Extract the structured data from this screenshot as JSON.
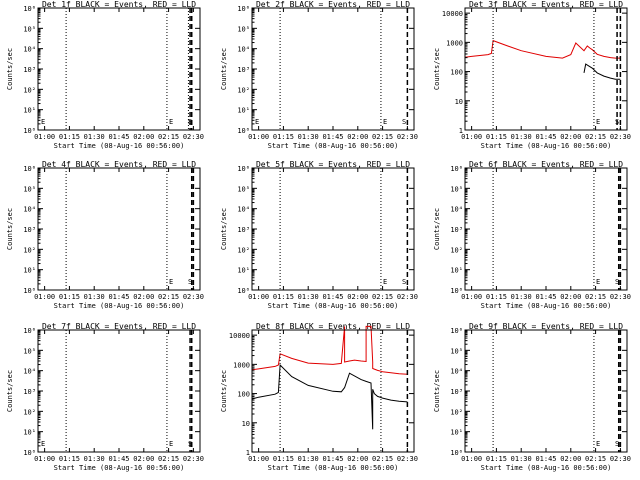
{
  "figure": {
    "background": "#ffffff",
    "colors": {
      "events": "#000000",
      "lld": "#e00000",
      "axis": "#000000"
    }
  },
  "chart_data": [
    {
      "panel": 1,
      "type": "line",
      "title": "Det 1f BLACK = Events, RED = LLD",
      "xlabel": "Start Time (08-Aug-16 00:56:00)",
      "ylabel": "Counts/sec",
      "xticks": [
        "01:00",
        "01:15",
        "01:30",
        "01:45",
        "02:00",
        "02:15",
        "02:30"
      ],
      "xlim": [
        "00:56",
        "02:34"
      ],
      "yscale": "log",
      "yticks": [
        "10⁰",
        "10¹",
        "10²",
        "10³",
        "10⁴",
        "10⁵",
        "10⁶"
      ],
      "ylim": [
        1,
        1000000
      ],
      "annotations": [
        "E",
        "E",
        "S"
      ],
      "dotted_lines_at": [
        "01:13",
        "02:14",
        "02:27"
      ],
      "dashed_lines_at": [
        "02:28",
        "02:29"
      ],
      "series": []
    },
    {
      "panel": 2,
      "type": "line",
      "title": "Det 2f BLACK = Events, RED = LLD",
      "xlabel": "Start Time (08-Aug-16 00:56:00)",
      "ylabel": "Counts/sec",
      "xticks": [
        "01:00",
        "01:15",
        "01:30",
        "01:45",
        "02:00",
        "02:15",
        "02:30"
      ],
      "xlim": [
        "00:56",
        "02:34"
      ],
      "yscale": "log",
      "yticks": [
        "10⁰",
        "10¹",
        "10²",
        "10³",
        "10⁴",
        "10⁵",
        "10⁶"
      ],
      "ylim": [
        1,
        1000000
      ],
      "annotations": [
        "E",
        "E",
        "S"
      ],
      "dotted_lines_at": [
        "01:13",
        "02:14"
      ],
      "dashed_lines_at": [
        "02:30"
      ],
      "series": []
    },
    {
      "panel": 3,
      "type": "line",
      "title": "Det 3f BLACK = Events, RED = LLD",
      "xlabel": "Start Time (08-Aug-16 00:56:00)",
      "ylabel": "Counts/sec",
      "xticks": [
        "01:00",
        "01:15",
        "01:30",
        "01:45",
        "02:00",
        "02:15",
        "02:30"
      ],
      "xlim": [
        "00:56",
        "02:34"
      ],
      "yscale": "log",
      "yticks": [
        "1",
        "10",
        "100",
        "1000",
        "10000"
      ],
      "ylim": [
        1,
        15000
      ],
      "annotations": [
        "E",
        "S"
      ],
      "dotted_lines_at": [
        "01:13",
        "02:14"
      ],
      "dashed_lines_at": [
        "02:28",
        "02:30"
      ],
      "series": [
        {
          "color": "#e00000",
          "x": [
            "00:56",
            "01:00",
            "01:10",
            "01:12",
            "01:13",
            "01:20",
            "01:30",
            "01:45",
            "01:55",
            "02:00",
            "02:03",
            "02:08",
            "02:10",
            "02:12",
            "02:13",
            "02:16",
            "02:20",
            "02:24",
            "02:27",
            "02:30"
          ],
          "y": [
            310,
            330,
            380,
            420,
            1150,
            820,
            520,
            330,
            290,
            380,
            950,
            520,
            750,
            610,
            560,
            390,
            330,
            300,
            290,
            290
          ]
        },
        {
          "color": "#000000",
          "x": [
            "02:08",
            "02:09",
            "02:13",
            "02:16",
            "02:20",
            "02:24",
            "02:27",
            "02:30"
          ],
          "y": [
            90,
            180,
            130,
            90,
            70,
            60,
            55,
            55
          ]
        }
      ]
    },
    {
      "panel": 4,
      "type": "line",
      "title": "Det 4f BLACK = Events, RED = LLD",
      "xlabel": "Start Time (08-Aug-16 00:56:00)",
      "ylabel": "Counts/sec",
      "xticks": [
        "01:00",
        "01:15",
        "01:30",
        "01:45",
        "02:00",
        "02:15",
        "02:30"
      ],
      "xlim": [
        "00:56",
        "02:34"
      ],
      "yscale": "log",
      "yticks": [
        "10⁰",
        "10¹",
        "10²",
        "10³",
        "10⁴",
        "10⁵",
        "10⁶"
      ],
      "ylim": [
        1,
        1000000
      ],
      "annotations": [
        "E",
        "S"
      ],
      "dotted_lines_at": [
        "01:13",
        "02:14"
      ],
      "dashed_lines_at": [
        "02:29",
        "02:30"
      ],
      "series": []
    },
    {
      "panel": 5,
      "type": "line",
      "title": "Det 5f BLACK = Events, RED = LLD",
      "xlabel": "Start Time (08-Aug-16 00:56:00)",
      "ylabel": "Counts/sec",
      "xticks": [
        "01:00",
        "01:15",
        "01:30",
        "01:45",
        "02:00",
        "02:15",
        "02:30"
      ],
      "xlim": [
        "00:56",
        "02:34"
      ],
      "yscale": "log",
      "yticks": [
        "10⁰",
        "10¹",
        "10²",
        "10³",
        "10⁴",
        "10⁵",
        "10⁶"
      ],
      "ylim": [
        1,
        1000000
      ],
      "annotations": [
        "E",
        "S"
      ],
      "dotted_lines_at": [
        "01:13",
        "02:14"
      ],
      "dashed_lines_at": [
        "02:30"
      ],
      "series": []
    },
    {
      "panel": 6,
      "type": "line",
      "title": "Det 6f BLACK = Events, RED = LLD",
      "xlabel": "Start Time (08-Aug-16 00:56:00)",
      "ylabel": "Counts/sec",
      "xticks": [
        "01:00",
        "01:15",
        "01:30",
        "01:45",
        "02:00",
        "02:15",
        "02:30"
      ],
      "xlim": [
        "00:56",
        "02:34"
      ],
      "yscale": "log",
      "yticks": [
        "10⁰",
        "10¹",
        "10²",
        "10³",
        "10⁴",
        "10⁵",
        "10⁶"
      ],
      "ylim": [
        1,
        1000000
      ],
      "annotations": [
        "E",
        "S"
      ],
      "dotted_lines_at": [
        "01:13",
        "02:14"
      ],
      "dashed_lines_at": [
        "02:29",
        "02:30"
      ],
      "series": []
    },
    {
      "panel": 7,
      "type": "line",
      "title": "Det 7f BLACK = Events, RED = LLD",
      "xlabel": "Start Time (08-Aug-16 00:56:00)",
      "ylabel": "Counts/sec",
      "xticks": [
        "01:00",
        "01:15",
        "01:30",
        "01:45",
        "02:00",
        "02:15",
        "02:30"
      ],
      "xlim": [
        "00:56",
        "02:34"
      ],
      "yscale": "log",
      "yticks": [
        "10⁰",
        "10¹",
        "10²",
        "10³",
        "10⁴",
        "10⁵",
        "10⁶"
      ],
      "ylim": [
        1,
        1000000
      ],
      "annotations": [
        "E",
        "E",
        "S"
      ],
      "dotted_lines_at": [
        "01:13",
        "02:14"
      ],
      "dashed_lines_at": [
        "02:28",
        "02:29"
      ],
      "series": []
    },
    {
      "panel": 8,
      "type": "line",
      "title": "Det 8f BLACK = Events, RED = LLD",
      "xlabel": "Start Time (08-Aug-16 00:56:00)",
      "ylabel": "Counts/sec",
      "xticks": [
        "01:00",
        "01:15",
        "01:30",
        "01:45",
        "02:00",
        "02:15",
        "02:30"
      ],
      "xlim": [
        "00:56",
        "02:34"
      ],
      "yscale": "log",
      "yticks": [
        "1",
        "10",
        "100",
        "1000",
        "10000"
      ],
      "ylim": [
        1,
        15000
      ],
      "annotations": [],
      "dotted_lines_at": [
        "01:13",
        "02:14"
      ],
      "dashed_lines_at": [
        "02:30"
      ],
      "series": [
        {
          "color": "#e00000",
          "x": [
            "00:56",
            "01:00",
            "01:10",
            "01:12",
            "01:13",
            "01:20",
            "01:30",
            "01:45",
            "01:50",
            "01:52",
            "01:52",
            "01:55",
            "01:58",
            "02:02",
            "02:05",
            "02:05",
            "02:08",
            "02:09",
            "02:09",
            "02:12",
            "02:15",
            "02:20",
            "02:25",
            "02:30"
          ],
          "y": [
            650,
            700,
            850,
            950,
            2300,
            1600,
            1100,
            1000,
            1080,
            20000,
            1200,
            1300,
            1400,
            1300,
            1250,
            20000,
            20000,
            1200,
            720,
            620,
            560,
            520,
            480,
            460
          ]
        },
        {
          "color": "#000000",
          "x": [
            "00:56",
            "01:00",
            "01:10",
            "01:12",
            "01:13",
            "01:20",
            "01:30",
            "01:45",
            "01:50",
            "01:52",
            "01:55",
            "02:02",
            "02:05",
            "02:08",
            "02:09",
            "02:09",
            "02:10",
            "02:12",
            "02:15",
            "02:20",
            "02:25",
            "02:30"
          ],
          "y": [
            65,
            75,
            95,
            110,
            950,
            380,
            190,
            120,
            115,
            160,
            500,
            300,
            260,
            230,
            6,
            140,
            100,
            80,
            70,
            60,
            55,
            52
          ]
        }
      ]
    },
    {
      "panel": 9,
      "type": "line",
      "title": "Det 9f BLACK = Events, RED = LLD",
      "xlabel": "Start Time (08-Aug-16 00:56:00)",
      "ylabel": "Counts/sec",
      "xticks": [
        "01:00",
        "01:15",
        "01:30",
        "01:45",
        "02:00",
        "02:15",
        "02:30"
      ],
      "xlim": [
        "00:56",
        "02:34"
      ],
      "yscale": "log",
      "yticks": [
        "10⁰",
        "10¹",
        "10²",
        "10³",
        "10⁴",
        "10⁵",
        "10⁶"
      ],
      "ylim": [
        1,
        1000000
      ],
      "annotations": [
        "E",
        "S"
      ],
      "dotted_lines_at": [
        "01:13",
        "02:14"
      ],
      "dashed_lines_at": [
        "02:29",
        "02:30"
      ],
      "series": []
    }
  ]
}
